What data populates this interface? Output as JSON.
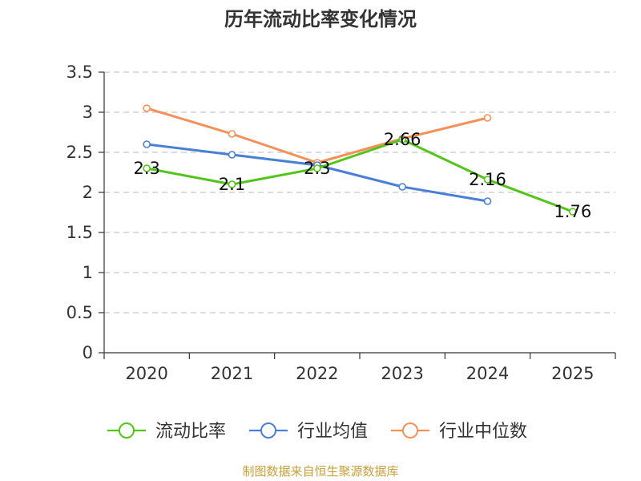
{
  "chart_data": {
    "type": "line",
    "title": "历年流动比率变化情况",
    "categories": [
      "2020",
      "2021",
      "2022",
      "2023",
      "2024",
      "2025"
    ],
    "ylim": [
      0,
      3.5
    ],
    "yticks": [
      "0",
      "0.5",
      "1",
      "1.5",
      "2",
      "2.5",
      "3",
      "3.5"
    ],
    "grid": true,
    "legend_position": "bottom",
    "series": [
      {
        "name": "流动比率",
        "color": "#52c41a",
        "values": [
          2.3,
          2.1,
          2.3,
          2.66,
          2.16,
          1.76
        ],
        "labels": [
          "2.3",
          "2.1",
          "2.3",
          "2.66",
          "2.16",
          "1.76"
        ]
      },
      {
        "name": "行业均值",
        "color": "#4a7fd6",
        "values": [
          2.6,
          2.47,
          2.34,
          2.07,
          1.89,
          null
        ]
      },
      {
        "name": "行业中位数",
        "color": "#f59058",
        "values": [
          3.05,
          2.73,
          2.37,
          2.67,
          2.93,
          null
        ]
      }
    ]
  },
  "source": "制图数据来自恒生聚源数据库"
}
